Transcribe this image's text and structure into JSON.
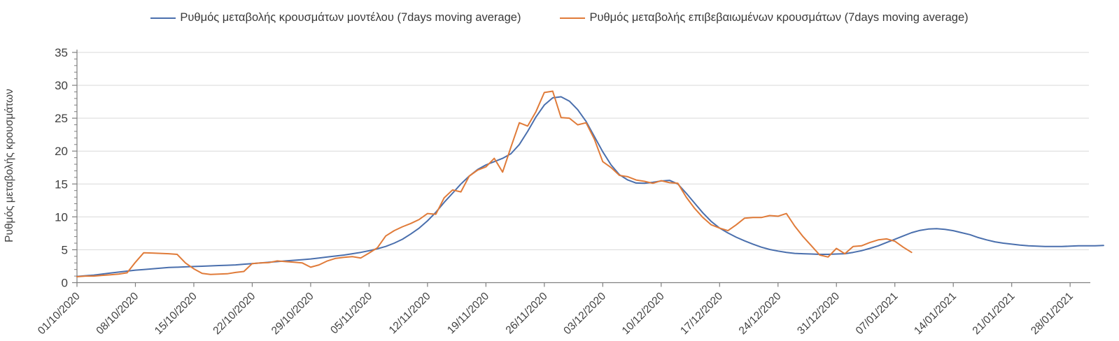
{
  "chart_data": {
    "type": "line",
    "title": "",
    "ylabel": "Ρυθμός μεταβολής κρουσμάτων",
    "xlabel": "",
    "ylim": [
      0,
      35
    ],
    "y_ticks": [
      0,
      5,
      10,
      15,
      20,
      25,
      30,
      35
    ],
    "y_minor_tick_step": 1,
    "grid": "horizontal-light",
    "legend_position": "top-center",
    "x_unit": "days since 01/10/2020, daily points",
    "x_tick_labels": [
      "01/10/2020",
      "08/10/2020",
      "15/10/2020",
      "22/10/2020",
      "29/10/2020",
      "05/11/2020",
      "12/11/2020",
      "19/11/2020",
      "26/11/2020",
      "03/12/2020",
      "10/12/2020",
      "17/12/2020",
      "24/12/2020",
      "31/12/2020",
      "07/01/2021",
      "14/01/2021",
      "21/01/2021",
      "28/01/2021"
    ],
    "x_tick_day_indices": [
      0,
      7,
      14,
      21,
      28,
      35,
      42,
      49,
      56,
      63,
      70,
      77,
      84,
      91,
      98,
      105,
      112,
      119
    ],
    "x_tick_rotation_deg": 45,
    "series": [
      {
        "name": "Ρυθμός μεταβολής κρουσμάτων μοντέλου (7days moving average)",
        "color": "#4a6fad",
        "start_date": "01/10/2020",
        "values": [
          0.95,
          1.05,
          1.15,
          1.3,
          1.45,
          1.6,
          1.75,
          1.9,
          2.0,
          2.1,
          2.2,
          2.3,
          2.35,
          2.4,
          2.45,
          2.5,
          2.55,
          2.6,
          2.65,
          2.7,
          2.8,
          2.9,
          3.0,
          3.1,
          3.2,
          3.3,
          3.4,
          3.5,
          3.6,
          3.75,
          3.9,
          4.05,
          4.2,
          4.4,
          4.6,
          4.85,
          5.15,
          5.5,
          6.0,
          6.6,
          7.4,
          8.3,
          9.4,
          10.7,
          12.2,
          13.6,
          15.0,
          16.2,
          17.2,
          17.9,
          18.4,
          18.9,
          19.6,
          21.0,
          23.0,
          25.2,
          27.0,
          28.1,
          28.25,
          27.6,
          26.3,
          24.5,
          22.2,
          19.9,
          17.9,
          16.4,
          15.6,
          15.15,
          15.1,
          15.25,
          15.45,
          15.55,
          15.0,
          13.6,
          12.1,
          10.6,
          9.3,
          8.3,
          7.55,
          6.9,
          6.35,
          5.85,
          5.4,
          5.05,
          4.8,
          4.6,
          4.45,
          4.4,
          4.35,
          4.3,
          4.3,
          4.35,
          4.4,
          4.6,
          4.85,
          5.2,
          5.6,
          6.1,
          6.6,
          7.1,
          7.6,
          7.95,
          8.15,
          8.2,
          8.1,
          7.9,
          7.6,
          7.3,
          6.85,
          6.5,
          6.2,
          6.0,
          5.85,
          5.7,
          5.6,
          5.55,
          5.5,
          5.5,
          5.5,
          5.55,
          5.6,
          5.6,
          5.6,
          5.65
        ]
      },
      {
        "name": "Ρυθμός μεταβολής επιβεβαιωμένων κρουσμάτων (7days moving average)",
        "color": "#e07b39",
        "start_date": "01/10/2020",
        "values": [
          0.9,
          1.0,
          1.0,
          1.1,
          1.2,
          1.3,
          1.5,
          3.1,
          4.55,
          4.5,
          4.45,
          4.4,
          4.3,
          3.0,
          2.1,
          1.4,
          1.25,
          1.3,
          1.35,
          1.55,
          1.7,
          2.9,
          3.0,
          3.05,
          3.3,
          3.2,
          3.1,
          3.0,
          2.35,
          2.7,
          3.3,
          3.7,
          3.85,
          3.95,
          3.75,
          4.5,
          5.3,
          7.1,
          7.9,
          8.5,
          9.0,
          9.6,
          10.5,
          10.4,
          12.9,
          14.1,
          13.8,
          16.2,
          17.1,
          17.6,
          18.9,
          16.8,
          20.6,
          24.3,
          23.8,
          26.0,
          28.9,
          29.1,
          25.1,
          25.0,
          24.0,
          24.3,
          21.8,
          18.4,
          17.5,
          16.3,
          16.1,
          15.6,
          15.4,
          15.1,
          15.5,
          15.2,
          15.1,
          13.0,
          11.3,
          9.9,
          8.8,
          8.3,
          7.9,
          8.8,
          9.8,
          9.9,
          9.9,
          10.2,
          10.1,
          10.5,
          8.6,
          7.0,
          5.6,
          4.2,
          3.9,
          5.2,
          4.4,
          5.5,
          5.6,
          6.1,
          6.5,
          6.65,
          6.3,
          5.4,
          4.6
        ]
      }
    ],
    "colors": {
      "grid_line": "#d9d9d9",
      "axis_line": "#7f7f7f",
      "tick_text": "#404040",
      "legend_text": "#3a3a3a"
    }
  }
}
